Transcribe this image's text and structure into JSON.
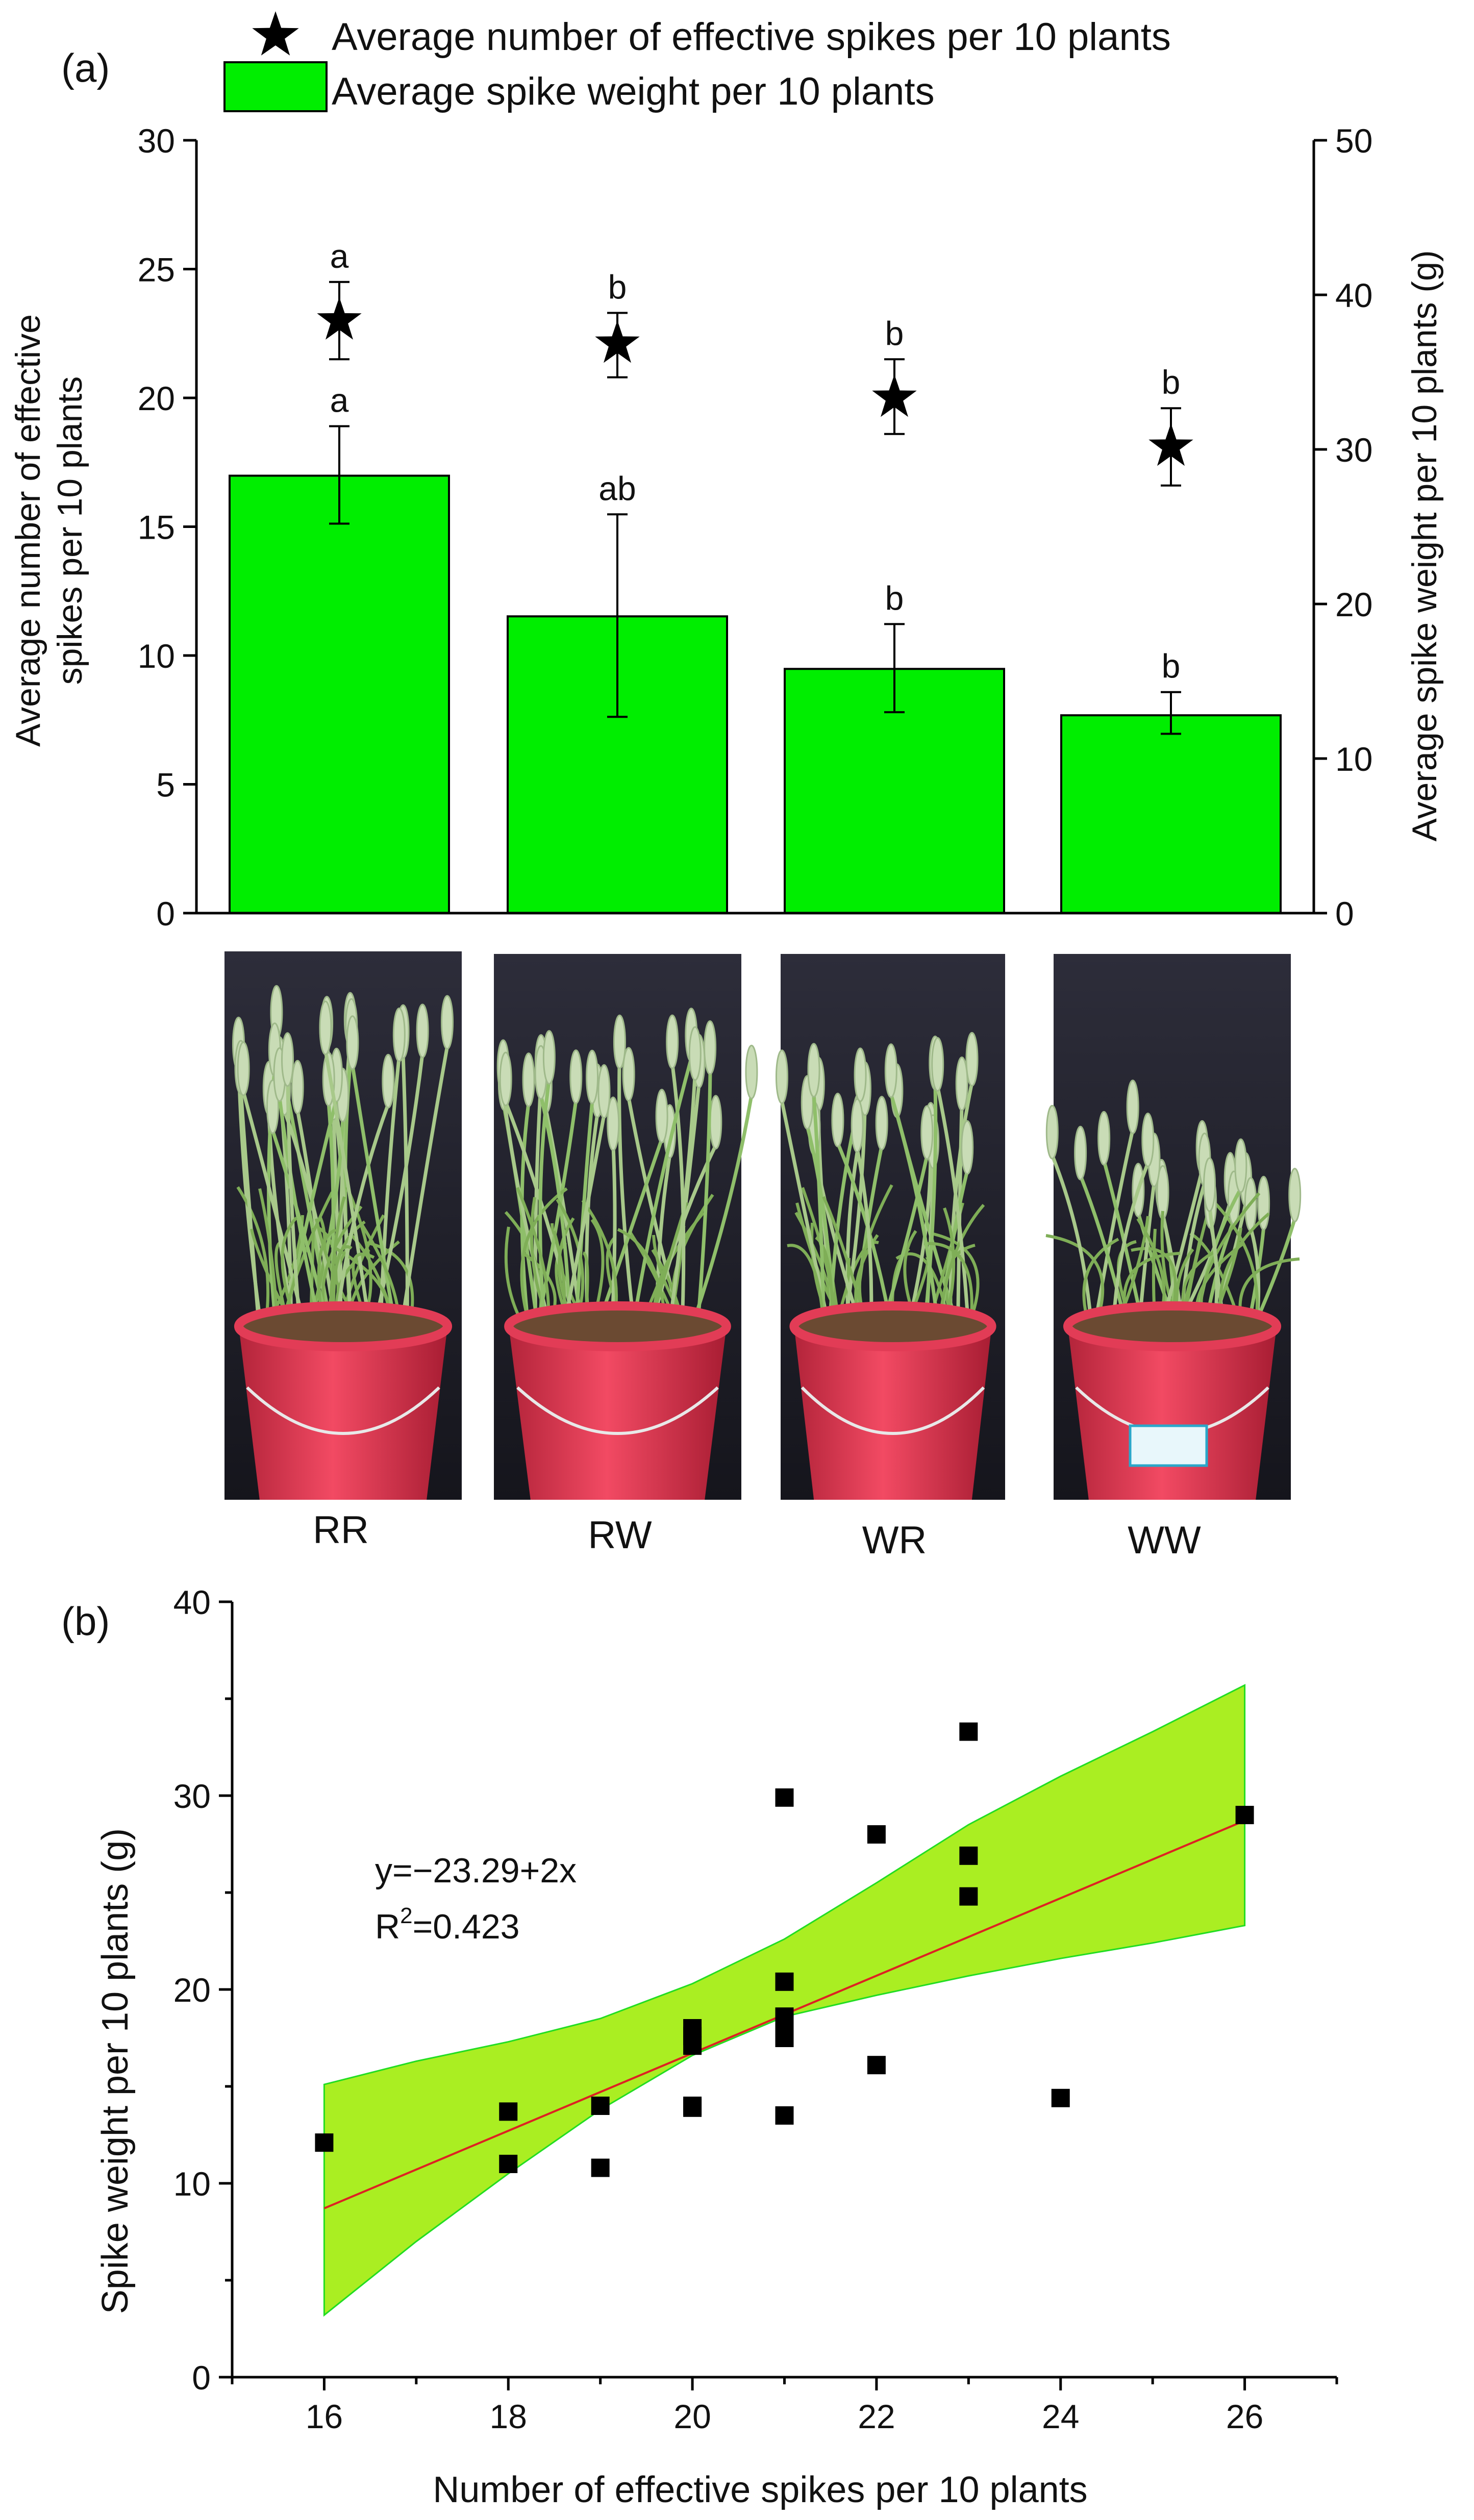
{
  "colors": {
    "bar": "#00ee00",
    "band": "#aaee22",
    "band_edge": "#22dd22",
    "fit_line": "#dd2222",
    "marker": "#000000"
  },
  "panel_a_label": "(a)",
  "panel_b_label": "(b)",
  "photo_labels": [
    "RR",
    "RW",
    "WR",
    "WW"
  ],
  "chart_data": [
    {
      "type": "bar",
      "panel": "(a)",
      "categories": [
        "RR",
        "RW",
        "WR",
        "WW"
      ],
      "legend": [
        {
          "name": "Average number of effective spikes per 10 plants",
          "marker": "star"
        },
        {
          "name": "Average spike weight per 10 plants",
          "marker": "bar"
        }
      ],
      "ylabel_left_line1": "Average number of effective",
      "ylabel_left_line2": "spikes per 10 plants",
      "ylabel_right": "Average spike weight per 10 plants (g)",
      "ylim_left": [
        0,
        30
      ],
      "yticks_left": [
        0,
        5,
        10,
        15,
        20,
        25,
        30
      ],
      "ylim_right": [
        0,
        50
      ],
      "yticks_right": [
        0,
        10,
        20,
        30,
        40,
        50
      ],
      "spike_weight": {
        "axis": "right",
        "values": [
          28.3,
          19.2,
          15.8,
          12.8
        ],
        "err_low": [
          25.2,
          12.7,
          13.0,
          11.6
        ],
        "err_high": [
          31.5,
          25.8,
          18.7,
          14.3
        ],
        "letters": [
          "a",
          "ab",
          "b",
          "b"
        ]
      },
      "spike_number": {
        "axis": "left",
        "values": [
          23.0,
          22.1,
          20.0,
          18.1
        ],
        "err_low": [
          21.5,
          20.8,
          18.6,
          16.6
        ],
        "err_high": [
          24.5,
          23.3,
          21.5,
          19.6
        ],
        "letters": [
          "a",
          "b",
          "b",
          "b"
        ]
      }
    },
    {
      "type": "scatter",
      "panel": "(b)",
      "xlabel": "Number of effective spikes per 10 plants",
      "ylabel": "Spike weight per 10 plants (g)",
      "xlim": [
        15,
        27
      ],
      "xticks": [
        16,
        18,
        20,
        22,
        24,
        26
      ],
      "ylim": [
        0,
        40
      ],
      "yticks": [
        0,
        10,
        20,
        30,
        40
      ],
      "points": [
        {
          "x": 16,
          "y": 12.1
        },
        {
          "x": 18,
          "y": 13.7
        },
        {
          "x": 18,
          "y": 11.0
        },
        {
          "x": 19,
          "y": 14.0
        },
        {
          "x": 19,
          "y": 10.8
        },
        {
          "x": 20,
          "y": 18.0
        },
        {
          "x": 20,
          "y": 17.6
        },
        {
          "x": 20,
          "y": 17.1
        },
        {
          "x": 20,
          "y": 14.0
        },
        {
          "x": 20,
          "y": 13.9
        },
        {
          "x": 21,
          "y": 29.9
        },
        {
          "x": 21,
          "y": 20.4
        },
        {
          "x": 21,
          "y": 18.6
        },
        {
          "x": 21,
          "y": 18.3
        },
        {
          "x": 21,
          "y": 17.5
        },
        {
          "x": 21,
          "y": 13.5
        },
        {
          "x": 22,
          "y": 28.0
        },
        {
          "x": 22,
          "y": 16.1
        },
        {
          "x": 23,
          "y": 33.3
        },
        {
          "x": 23,
          "y": 26.9
        },
        {
          "x": 23,
          "y": 24.8
        },
        {
          "x": 24,
          "y": 14.4
        },
        {
          "x": 26,
          "y": 29.0
        }
      ],
      "fit": {
        "intercept": -23.29,
        "slope": 2,
        "x_range": [
          16,
          26
        ]
      },
      "confidence_band": {
        "x": [
          16,
          17,
          18,
          19,
          20,
          21,
          22,
          23,
          24,
          25,
          26
        ],
        "lower": [
          3.2,
          7.0,
          10.5,
          13.8,
          16.6,
          18.6,
          19.7,
          20.7,
          21.6,
          22.4,
          23.3
        ],
        "upper": [
          15.1,
          16.3,
          17.3,
          18.5,
          20.3,
          22.6,
          25.5,
          28.5,
          31.0,
          33.3,
          35.7
        ]
      },
      "annotation_eq": "y=−23.29+2x",
      "annotation_r2_prefix": "R",
      "annotation_r2_sup": "2",
      "annotation_r2_value": "=0.423"
    }
  ]
}
